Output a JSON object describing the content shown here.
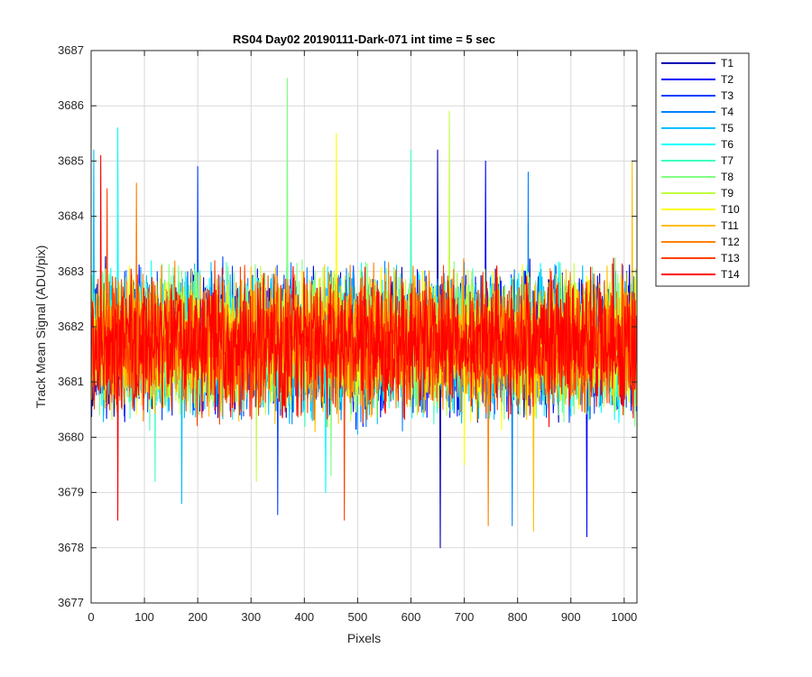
{
  "chart_data": {
    "type": "line",
    "title": "RS04 Day02 20190111-Dark-071 int time = 5 sec",
    "xlabel": "Pixels",
    "ylabel": "Track Mean Signal (ADU/pix)",
    "xlim": [
      0,
      1024
    ],
    "ylim": [
      3677,
      3687
    ],
    "xticks": [
      0,
      100,
      200,
      300,
      400,
      500,
      600,
      700,
      800,
      900,
      1000
    ],
    "yticks": [
      3677,
      3678,
      3679,
      3680,
      3681,
      3682,
      3683,
      3684,
      3685,
      3686,
      3687
    ],
    "grid": true,
    "legend_position": "outside-top-right",
    "n_points": 1024,
    "noise_center": 3681.7,
    "noise_amplitude": 1.1,
    "series": [
      {
        "name": "T1",
        "color": "#0000b3",
        "extreme_max": 3685.2,
        "extreme_min": 3678.0,
        "extreme_max_x": 650,
        "extreme_min_x": 655
      },
      {
        "name": "T2",
        "color": "#0000ff",
        "extreme_max": 3685.0,
        "extreme_min": 3678.2,
        "extreme_max_x": 740,
        "extreme_min_x": 930
      },
      {
        "name": "T3",
        "color": "#0040ff",
        "extreme_max": 3684.9,
        "extreme_min": 3678.6,
        "extreme_max_x": 200,
        "extreme_min_x": 350
      },
      {
        "name": "T4",
        "color": "#0080ff",
        "extreme_max": 3684.8,
        "extreme_min": 3678.4,
        "extreme_max_x": 820,
        "extreme_min_x": 790
      },
      {
        "name": "T5",
        "color": "#00bfff",
        "extreme_max": 3685.2,
        "extreme_min": 3678.8,
        "extreme_max_x": 5,
        "extreme_min_x": 170
      },
      {
        "name": "T6",
        "color": "#00ffff",
        "extreme_max": 3685.6,
        "extreme_min": 3679.0,
        "extreme_max_x": 50,
        "extreme_min_x": 440
      },
      {
        "name": "T7",
        "color": "#40ffbf",
        "extreme_max": 3685.2,
        "extreme_min": 3679.2,
        "extreme_max_x": 600,
        "extreme_min_x": 120
      },
      {
        "name": "T8",
        "color": "#80ff80",
        "extreme_max": 3686.5,
        "extreme_min": 3679.3,
        "extreme_max_x": 368,
        "extreme_min_x": 450
      },
      {
        "name": "T9",
        "color": "#bfff40",
        "extreme_max": 3685.9,
        "extreme_min": 3679.2,
        "extreme_max_x": 672,
        "extreme_min_x": 310
      },
      {
        "name": "T10",
        "color": "#ffff00",
        "extreme_max": 3685.5,
        "extreme_min": 3679.5,
        "extreme_max_x": 460,
        "extreme_min_x": 700
      },
      {
        "name": "T11",
        "color": "#ffbf00",
        "extreme_max": 3685.0,
        "extreme_min": 3678.3,
        "extreme_max_x": 1015,
        "extreme_min_x": 830
      },
      {
        "name": "T12",
        "color": "#ff8000",
        "extreme_max": 3684.6,
        "extreme_min": 3678.4,
        "extreme_max_x": 85,
        "extreme_min_x": 745
      },
      {
        "name": "T13",
        "color": "#ff4000",
        "extreme_max": 3684.5,
        "extreme_min": 3678.5,
        "extreme_max_x": 30,
        "extreme_min_x": 475
      },
      {
        "name": "T14",
        "color": "#ff0000",
        "extreme_max": 3685.1,
        "extreme_min": 3678.5,
        "extreme_max_x": 18,
        "extreme_min_x": 50
      }
    ]
  }
}
